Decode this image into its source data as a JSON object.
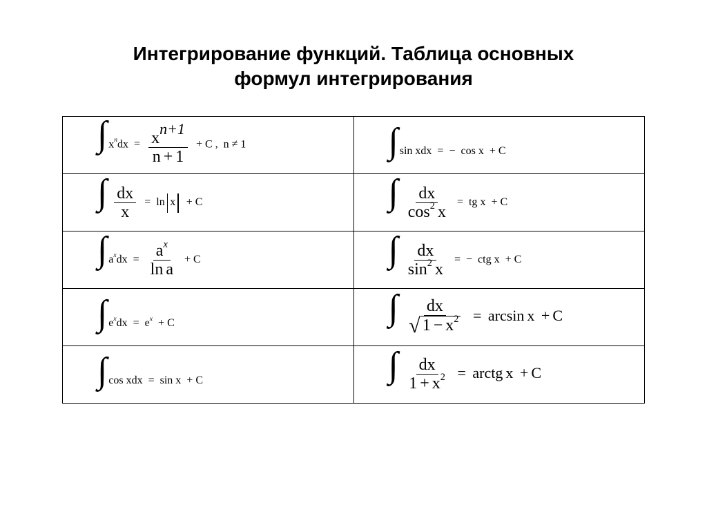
{
  "title_line1": "Интегрирование функций. Таблица основных",
  "title_line2": "формул интегрирования",
  "table": {
    "border_color": "#000000",
    "background": "#ffffff",
    "rows": 5,
    "cols": 2,
    "font_family": "Times New Roman",
    "formula_fontsize": 26,
    "title_fontsize": 28
  },
  "formulas": {
    "r0c0": "∫ xⁿ dx = xⁿ⁺¹/(n+1) + C, n ≠ 1",
    "r0c1": "∫ sin x dx = −cos x + C",
    "r1c0": "∫ dx/x = ln|x| + C",
    "r1c1": "∫ dx/cos² x = tg x + C",
    "r2c0": "∫ aˣ dx = aˣ/ln a + C",
    "r2c1": "∫ dx/sin² x = −ctg x + C",
    "r3c0": "∫ eˣ dx = eˣ + C",
    "r3c1": "∫ dx/√(1−x²) = arcsin x + C",
    "r4c0": "∫ cos x dx = sin x + C",
    "r4c1": "∫ dx/(1+x²) = arctg x + C"
  },
  "math_tokens": {
    "C": "C",
    "x": "x",
    "n": "n",
    "a": "a",
    "e": "e",
    "d": "d",
    "sin": "sin",
    "cos": "cos",
    "tg": "tg",
    "ctg": "ctg",
    "ln": "ln",
    "arcsin": "arcsin",
    "arctg": "arctg",
    "plus": "+",
    "minus": "−",
    "eq": "=",
    "comma": ",",
    "neq": "≠",
    "one": "1",
    "two": "2",
    "np1": "n+1"
  }
}
